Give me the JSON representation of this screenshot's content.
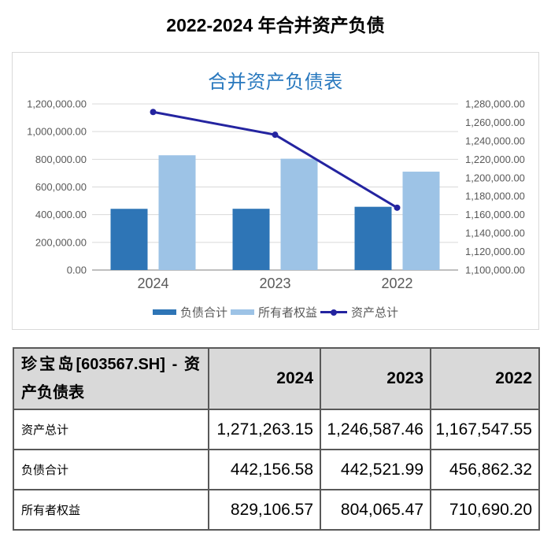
{
  "page_title": "2022-2024 年合并资产负债",
  "chart_data": {
    "type": "combo",
    "title": "合并资产负债表",
    "categories": [
      "2024",
      "2023",
      "2022"
    ],
    "bar_series": [
      {
        "name": "负债合计",
        "values": [
          442156.58,
          442521.99,
          456862.32
        ],
        "color": "#2E75B6",
        "axis": "left"
      },
      {
        "name": "所有者权益",
        "values": [
          829106.57,
          804065.47,
          710690.2
        ],
        "color": "#9DC3E6",
        "axis": "left"
      }
    ],
    "line_series": {
      "name": "资产总计",
      "values": [
        1271263.15,
        1246587.46,
        1167547.55
      ],
      "color": "#2424A0",
      "axis": "right"
    },
    "left_axis": {
      "min": 0,
      "max": 1200000,
      "step": 200000
    },
    "right_axis": {
      "min": 1100000,
      "max": 1280000,
      "step": 20000
    },
    "grid": true,
    "legend_position": "bottom"
  },
  "table": {
    "title_cell": "珍宝岛[603567.SH] - 资产负债表",
    "columns": [
      "2024",
      "2023",
      "2022"
    ],
    "rows": [
      {
        "label": "资产总计",
        "values": [
          "1,271,263.15",
          "1,246,587.46",
          "1,167,547.55"
        ]
      },
      {
        "label": "负债合计",
        "values": [
          "442,156.58",
          "442,521.99",
          "456,862.32"
        ]
      },
      {
        "label": "所有者权益",
        "values": [
          "829,106.57",
          "804,065.47",
          "710,690.20"
        ]
      }
    ]
  },
  "colors": {
    "chart_title": "#2878BE",
    "axis_text": "#595959",
    "gridline": "#D9D9D9",
    "header_bg": "#D9D9D9",
    "table_border": "#595959"
  }
}
